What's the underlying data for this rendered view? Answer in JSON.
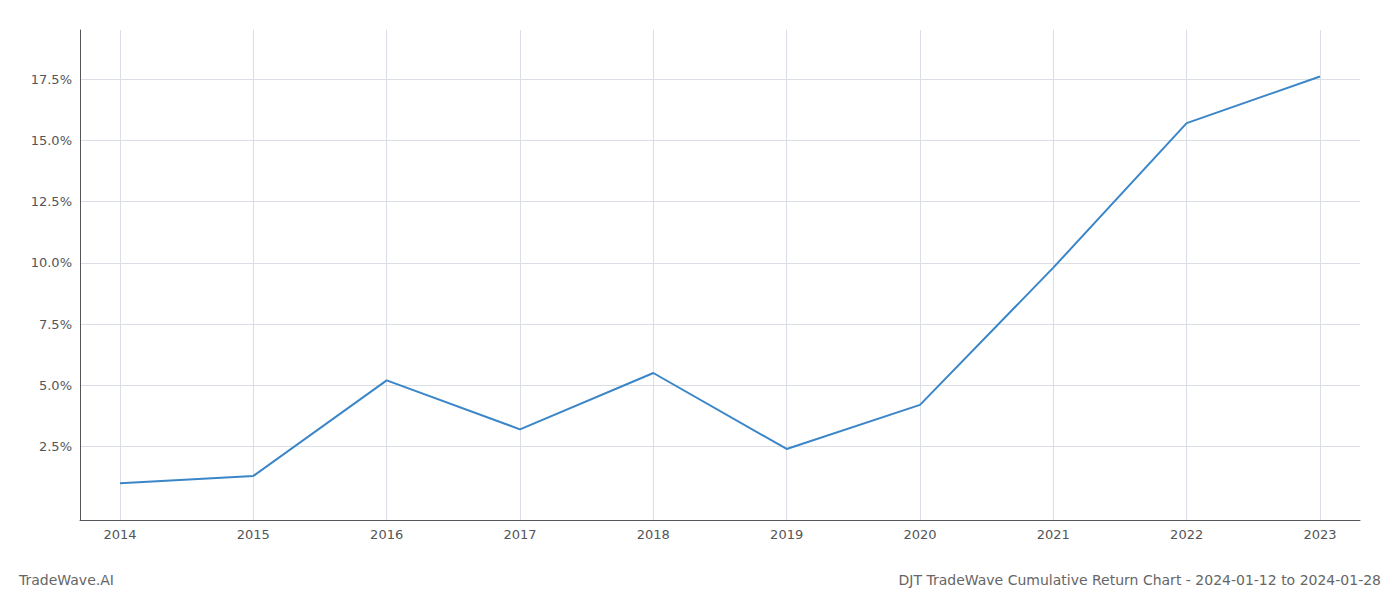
{
  "chart_data": {
    "type": "line",
    "title": "DJT TradeWave Cumulative Return Chart - 2024-01-12 to 2024-01-28",
    "annotation": "TradeWave.AI",
    "x": [
      2014,
      2015,
      2016,
      2017,
      2018,
      2019,
      2020,
      2021,
      2022,
      2023
    ],
    "values": [
      1.0,
      1.3,
      5.2,
      3.2,
      5.5,
      2.4,
      4.2,
      9.8,
      15.7,
      17.6
    ],
    "color": "#3a86c8",
    "xlim": [
      2013.7,
      2023.3
    ],
    "xticks": [
      2014,
      2015,
      2016,
      2017,
      2018,
      2019,
      2020,
      2021,
      2022,
      2023
    ],
    "ylim": [
      -0.5,
      19.5
    ],
    "yticks": [
      {
        "value": 2.5,
        "label": "2.5%"
      },
      {
        "value": 5.0,
        "label": "5.0%"
      },
      {
        "value": 7.5,
        "label": "7.5%"
      },
      {
        "value": 10.0,
        "label": "10.0%"
      },
      {
        "value": 12.5,
        "label": "12.5%"
      },
      {
        "value": 15.0,
        "label": "15.0%"
      },
      {
        "value": 17.5,
        "label": "17.5%"
      }
    ],
    "grid": true
  }
}
